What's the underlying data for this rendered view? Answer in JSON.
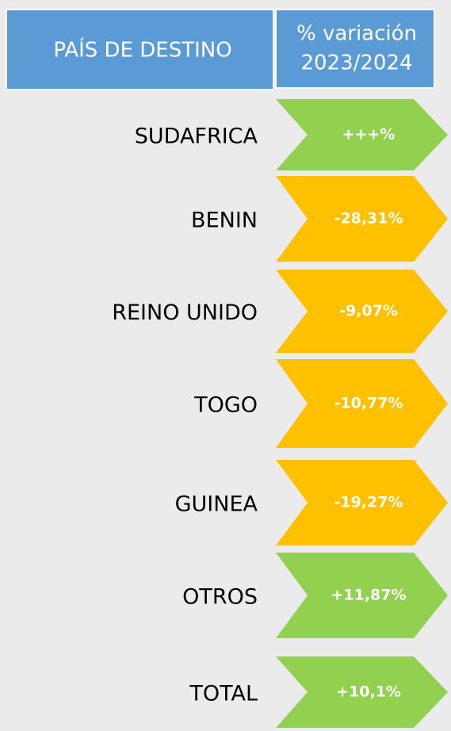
{
  "header": {
    "columns": [
      "PAÍS DE DESTINO",
      "% variación",
      "2023/2024"
    ]
  },
  "rows": [
    {
      "country": "SUDAFRICA",
      "variation": "+++%",
      "color": "#92d050"
    },
    {
      "country": "BENIN",
      "variation": "-28,31%",
      "color": "#ffc000"
    },
    {
      "country": "REINO UNIDO",
      "variation": "-9,07%",
      "color": "#ffc000"
    },
    {
      "country": "TOGO",
      "variation": "-10,77%",
      "color": "#ffc000"
    },
    {
      "country": "GUINEA",
      "variation": "-19,27%",
      "color": "#ffc000"
    },
    {
      "country": "OTROS",
      "variation": "+11,87%",
      "color": "#92d050"
    },
    {
      "country": "TOTAL",
      "variation": "+10,1%",
      "color": "#92d050"
    }
  ]
}
